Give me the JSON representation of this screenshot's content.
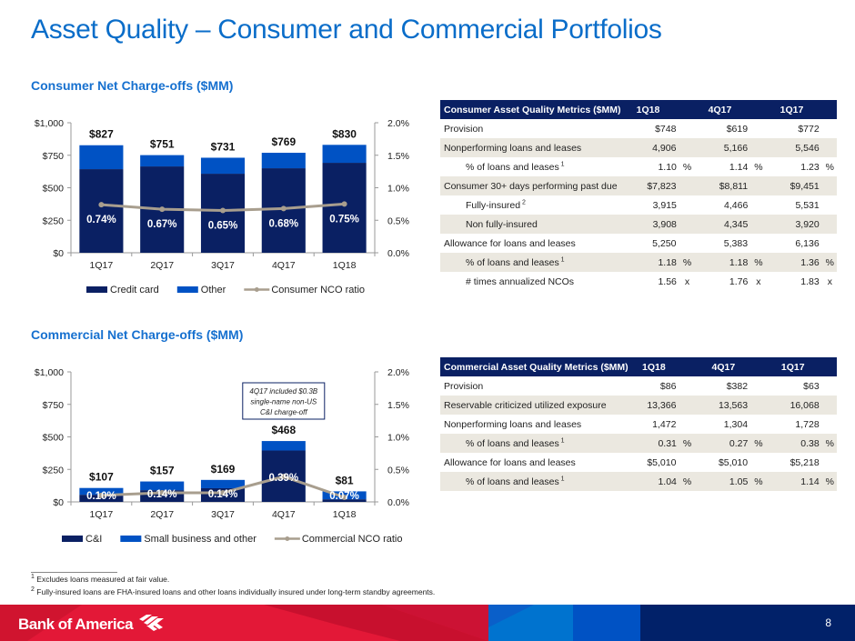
{
  "page": {
    "title": "Asset Quality – Consumer and Commercial Portfolios",
    "page_number": "8",
    "brand": "Bank of America",
    "logo_icon": "flag-stripes-icon"
  },
  "colors": {
    "title_blue": "#0a6dc9",
    "navy": "#0a2063",
    "mid_blue": "#0052c4",
    "line_taupe": "#a89e8e",
    "red": "#e31837",
    "dark_red": "#c8102e",
    "light_blue": "#0073cf",
    "table_shade": "#ebe8e0"
  },
  "consumer_section": {
    "title": "Consumer Net Charge-offs ($MM)"
  },
  "commercial_section": {
    "title": "Commercial Net Charge-offs ($MM)"
  },
  "chart_data": [
    {
      "type": "bar",
      "stacked": true,
      "title": "Consumer Net Charge-offs ($MM)",
      "categories": [
        "1Q17",
        "2Q17",
        "3Q17",
        "4Q17",
        "1Q18"
      ],
      "series": [
        {
          "name": "Credit card",
          "values": [
            643,
            664,
            608,
            650,
            692
          ],
          "color": "#0a2063"
        },
        {
          "name": "Other",
          "values": [
            184,
            87,
            123,
            119,
            138
          ],
          "color": "#0052c4"
        }
      ],
      "totals": [
        827,
        751,
        731,
        769,
        830
      ],
      "total_labels": [
        "$827",
        "$751",
        "$731",
        "$769",
        "$830"
      ],
      "line_series": {
        "name": "Consumer NCO ratio",
        "values": [
          0.74,
          0.67,
          0.65,
          0.68,
          0.75
        ],
        "labels": [
          "0.74%",
          "0.67%",
          "0.65%",
          "0.68%",
          "0.75%"
        ],
        "axis": "right",
        "color": "#a89e8e"
      },
      "ylim": [
        0,
        1000
      ],
      "y_ticks": [
        "$0",
        "$250",
        "$500",
        "$750",
        "$1,000"
      ],
      "y2lim": [
        0,
        2.0
      ],
      "y2_ticks": [
        "0.0%",
        "0.5%",
        "1.0%",
        "1.5%",
        "2.0%"
      ],
      "legend": [
        "Credit card",
        "Other",
        "Consumer NCO ratio"
      ],
      "legend_position": "bottom",
      "grid": false
    },
    {
      "type": "bar",
      "stacked": true,
      "title": "Commercial Net Charge-offs ($MM)",
      "categories": [
        "1Q17",
        "2Q17",
        "3Q17",
        "4Q17",
        "1Q18"
      ],
      "series": [
        {
          "name": "C&I",
          "values": [
            55,
            90,
            105,
            395,
            20
          ],
          "color": "#0a2063"
        },
        {
          "name": "Small business and other",
          "values": [
            52,
            67,
            64,
            73,
            61
          ],
          "color": "#0052c4"
        }
      ],
      "totals": [
        107,
        157,
        169,
        468,
        81
      ],
      "total_labels": [
        "$107",
        "$157",
        "$169",
        "$468",
        "$81"
      ],
      "line_series": {
        "name": "Commercial NCO ratio",
        "values": [
          0.1,
          0.14,
          0.14,
          0.39,
          0.07
        ],
        "labels": [
          "0.10%",
          "0.14%",
          "0.14%",
          "0.39%",
          "0.07%"
        ],
        "axis": "right",
        "color": "#a89e8e"
      },
      "ylim": [
        0,
        1000
      ],
      "y_ticks": [
        "$0",
        "$250",
        "$500",
        "$750",
        "$1,000"
      ],
      "y2lim": [
        0,
        2.0
      ],
      "y2_ticks": [
        "0.0%",
        "0.5%",
        "1.0%",
        "1.5%",
        "2.0%"
      ],
      "legend": [
        "C&I",
        "Small business and other",
        "Commercial NCO ratio"
      ],
      "legend_position": "bottom",
      "grid": false,
      "annotation": [
        "4Q17 included $0.3B",
        "single-name non-US",
        "C&I charge-off"
      ]
    }
  ],
  "consumer_table": {
    "header": [
      "Consumer Asset Quality Metrics ($MM)",
      "1Q18",
      "4Q17",
      "1Q17"
    ],
    "rows": [
      {
        "label": "Provision",
        "sup": "",
        "indent": false,
        "values": [
          "$748",
          "$619",
          "$772"
        ],
        "unit": ""
      },
      {
        "label": "Nonperforming loans and leases",
        "sup": "",
        "indent": false,
        "values": [
          "4,906",
          "5,166",
          "5,546"
        ],
        "unit": ""
      },
      {
        "label": "% of loans and leases",
        "sup": "1",
        "indent": true,
        "values": [
          "1.10",
          "1.14",
          "1.23"
        ],
        "unit": "%"
      },
      {
        "label": "Consumer 30+ days performing past due",
        "sup": "",
        "indent": false,
        "values": [
          "$7,823",
          "$8,811",
          "$9,451"
        ],
        "unit": ""
      },
      {
        "label": "Fully-insured",
        "sup": "2",
        "indent": true,
        "values": [
          "3,915",
          "4,466",
          "5,531"
        ],
        "unit": ""
      },
      {
        "label": "Non fully-insured",
        "sup": "",
        "indent": true,
        "values": [
          "3,908",
          "4,345",
          "3,920"
        ],
        "unit": ""
      },
      {
        "label": "Allowance for loans and leases",
        "sup": "",
        "indent": false,
        "values": [
          "5,250",
          "5,383",
          "6,136"
        ],
        "unit": ""
      },
      {
        "label": "% of loans and leases",
        "sup": "1",
        "indent": true,
        "values": [
          "1.18",
          "1.18",
          "1.36"
        ],
        "unit": "%"
      },
      {
        "label": "# times annualized NCOs",
        "sup": "",
        "indent": true,
        "values": [
          "1.56",
          "1.76",
          "1.83"
        ],
        "unit": "x"
      }
    ]
  },
  "commercial_table": {
    "header": [
      "Commercial Asset Quality Metrics ($MM)",
      "1Q18",
      "4Q17",
      "1Q17"
    ],
    "rows": [
      {
        "label": "Provision",
        "sup": "",
        "indent": false,
        "values": [
          "$86",
          "$382",
          "$63"
        ],
        "unit": ""
      },
      {
        "label": "Reservable criticized utilized exposure",
        "sup": "",
        "indent": false,
        "values": [
          "13,366",
          "13,563",
          "16,068"
        ],
        "unit": ""
      },
      {
        "label": "Nonperforming loans and leases",
        "sup": "",
        "indent": false,
        "values": [
          "1,472",
          "1,304",
          "1,728"
        ],
        "unit": ""
      },
      {
        "label": "% of loans and leases",
        "sup": "1",
        "indent": true,
        "values": [
          "0.31",
          "0.27",
          "0.38"
        ],
        "unit": "%"
      },
      {
        "label": "Allowance for loans and leases",
        "sup": "",
        "indent": false,
        "values": [
          "$5,010",
          "$5,010",
          "$5,218"
        ],
        "unit": ""
      },
      {
        "label": "% of loans and leases",
        "sup": "1",
        "indent": true,
        "values": [
          "1.04",
          "1.05",
          "1.14"
        ],
        "unit": "%"
      }
    ]
  },
  "footnotes": [
    {
      "mark": "1",
      "text": "Excludes loans measured at fair value."
    },
    {
      "mark": "2",
      "text": "Fully-insured loans are FHA-insured loans and other loans individually insured under long-term standby agreements."
    }
  ]
}
